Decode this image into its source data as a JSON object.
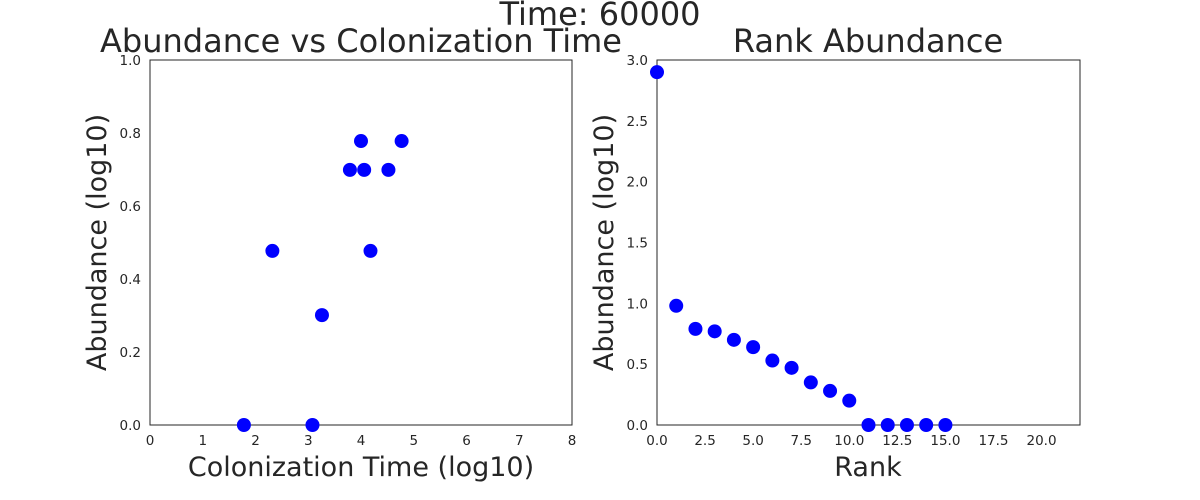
{
  "figure": {
    "suptitle": "Time: 60000"
  },
  "colors": {
    "marker": "#0000ff",
    "text": "#262626",
    "background": "#ffffff"
  },
  "chart_data": [
    {
      "type": "scatter",
      "title": "Abundance vs Colonization Time",
      "xlabel": "Colonization Time (log10)",
      "ylabel": "Abundance (log10)",
      "xlim": [
        0,
        8
      ],
      "ylim": [
        0,
        1.0
      ],
      "xticks": [
        0,
        1,
        2,
        3,
        4,
        5,
        6,
        7,
        8
      ],
      "xtick_labels": [
        "0",
        "1",
        "2",
        "3",
        "4",
        "5",
        "6",
        "7",
        "8"
      ],
      "yticks": [
        0,
        0.2,
        0.4,
        0.6,
        0.8,
        1.0
      ],
      "ytick_labels": [
        "0.0",
        "0.2",
        "0.4",
        "0.6",
        "0.8",
        "1.0"
      ],
      "grid": false,
      "points": [
        {
          "x": 1.78,
          "y": 0.0
        },
        {
          "x": 2.32,
          "y": 0.477
        },
        {
          "x": 3.08,
          "y": 0.0
        },
        {
          "x": 3.26,
          "y": 0.301
        },
        {
          "x": 3.79,
          "y": 0.699
        },
        {
          "x": 4.0,
          "y": 0.778
        },
        {
          "x": 4.06,
          "y": 0.699
        },
        {
          "x": 4.18,
          "y": 0.477
        },
        {
          "x": 4.52,
          "y": 0.699
        },
        {
          "x": 4.77,
          "y": 0.778
        }
      ]
    },
    {
      "type": "scatter",
      "title": "Rank Abundance",
      "xlabel": "Rank",
      "ylabel": "Abundance (log10)",
      "xlim": [
        0,
        22
      ],
      "ylim": [
        0,
        3.0
      ],
      "xticks": [
        0,
        2.5,
        5,
        7.5,
        10,
        12.5,
        15,
        17.5,
        20
      ],
      "xtick_labels": [
        "0.0",
        "2.5",
        "5.0",
        "7.5",
        "10.0",
        "12.5",
        "15.0",
        "17.5",
        "20.0"
      ],
      "yticks": [
        0,
        0.5,
        1.0,
        1.5,
        2.0,
        2.5,
        3.0
      ],
      "ytick_labels": [
        "0.0",
        "0.5",
        "1.0",
        "1.5",
        "2.0",
        "2.5",
        "3.0"
      ],
      "grid": false,
      "points": [
        {
          "x": 0,
          "y": 2.9
        },
        {
          "x": 1,
          "y": 0.98
        },
        {
          "x": 2,
          "y": 0.79
        },
        {
          "x": 3,
          "y": 0.77
        },
        {
          "x": 4,
          "y": 0.7
        },
        {
          "x": 5,
          "y": 0.64
        },
        {
          "x": 6,
          "y": 0.53
        },
        {
          "x": 7,
          "y": 0.47
        },
        {
          "x": 8,
          "y": 0.35
        },
        {
          "x": 9,
          "y": 0.28
        },
        {
          "x": 10,
          "y": 0.2
        },
        {
          "x": 11,
          "y": 0.0
        },
        {
          "x": 12,
          "y": 0.0
        },
        {
          "x": 13,
          "y": 0.0
        },
        {
          "x": 14,
          "y": 0.0
        },
        {
          "x": 15,
          "y": 0.0
        }
      ]
    }
  ]
}
